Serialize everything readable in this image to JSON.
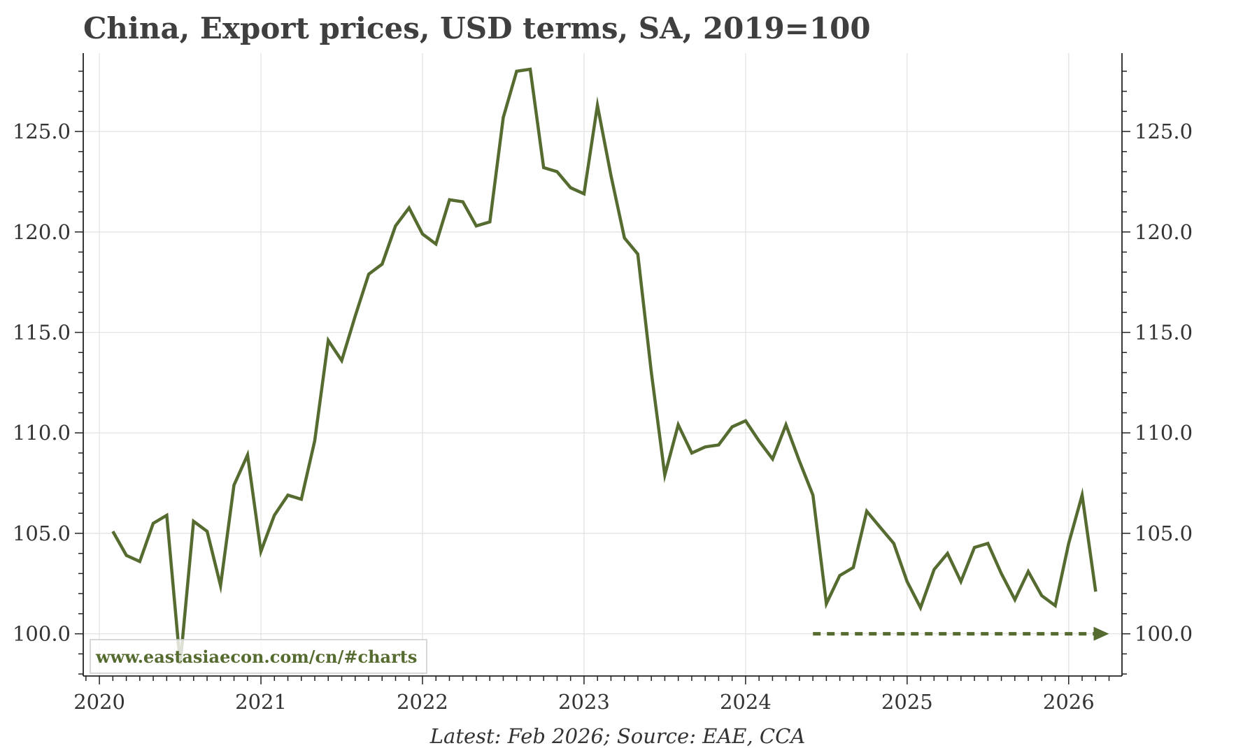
{
  "chart_data": {
    "type": "line",
    "title": "China, Export prices, USD terms, SA, 2019=100",
    "xlabel": "",
    "ylabel": "",
    "ylim": [
      97.9,
      128.9
    ],
    "xlim": [
      2019.9,
      2026.33
    ],
    "x_ticks": [
      {
        "value": 2020,
        "label": "2020"
      },
      {
        "value": 2021,
        "label": "2021"
      },
      {
        "value": 2022,
        "label": "2022"
      },
      {
        "value": 2023,
        "label": "2023"
      },
      {
        "value": 2024,
        "label": "2024"
      },
      {
        "value": 2025,
        "label": "2025"
      },
      {
        "value": 2026,
        "label": "2026"
      }
    ],
    "y_ticks": [
      {
        "value": 100,
        "label": "100.0"
      },
      {
        "value": 105,
        "label": "105.0"
      },
      {
        "value": 110,
        "label": "110.0"
      },
      {
        "value": 115,
        "label": "115.0"
      },
      {
        "value": 120,
        "label": "120.0"
      },
      {
        "value": 125,
        "label": "125.0"
      }
    ],
    "grid": true,
    "line_color": "#556b2f",
    "series": [
      {
        "x": [
          2020.083,
          2020.167,
          2020.25,
          2020.333,
          2020.417,
          2020.5,
          2020.583,
          2020.667,
          2020.75,
          2020.833,
          2020.917,
          2021.0,
          2021.083,
          2021.167,
          2021.25,
          2021.333,
          2021.417,
          2021.5,
          2021.583,
          2021.667,
          2021.75,
          2021.833,
          2021.917,
          2022.0,
          2022.083,
          2022.167,
          2022.25,
          2022.333,
          2022.417,
          2022.5,
          2022.583,
          2022.667,
          2022.75,
          2022.833,
          2022.917,
          2023.0,
          2023.083,
          2023.167,
          2023.25,
          2023.333,
          2023.417,
          2023.5,
          2023.583,
          2023.667,
          2023.75,
          2023.833,
          2023.917,
          2024.0,
          2024.083,
          2024.167,
          2024.25,
          2024.333,
          2024.417,
          2024.5,
          2024.583,
          2024.667,
          2024.75,
          2024.833,
          2024.917,
          2025.0,
          2025.083,
          2025.167,
          2025.25,
          2025.333,
          2025.417,
          2025.5,
          2025.583,
          2025.667,
          2025.75,
          2025.833,
          2025.917,
          2026.0,
          2026.083,
          2026.167
        ],
        "values": [
          105.1,
          103.9,
          103.6,
          105.5,
          105.9,
          98.5,
          105.6,
          105.1,
          102.4,
          107.4,
          108.9,
          104.1,
          105.9,
          106.9,
          106.7,
          109.6,
          114.6,
          113.6,
          115.8,
          117.9,
          118.4,
          120.3,
          121.2,
          119.9,
          119.4,
          121.6,
          121.5,
          120.3,
          120.5,
          125.7,
          128.0,
          128.1,
          123.2,
          123.0,
          122.2,
          121.9,
          126.3,
          122.8,
          119.7,
          118.9,
          113.0,
          107.9,
          110.4,
          109.0,
          109.3,
          109.4,
          110.3,
          110.6,
          109.6,
          108.7,
          110.4,
          108.6,
          106.9,
          101.5,
          102.9,
          103.3,
          106.1,
          105.3,
          104.5,
          102.6,
          101.3,
          103.2,
          104.0,
          102.6,
          104.3,
          104.5,
          103.0,
          101.7,
          103.1,
          101.9,
          101.4,
          104.5,
          106.9,
          102.1
        ]
      }
    ],
    "projection": {
      "x_start": 2024.417,
      "x_end": 2026.25,
      "value": 100.0,
      "style": "dashed-arrow"
    },
    "watermark": "www.eastasiaecon.com/cn/#charts",
    "source_note": "Latest: Feb 2026; Source: EAE, CCA"
  }
}
